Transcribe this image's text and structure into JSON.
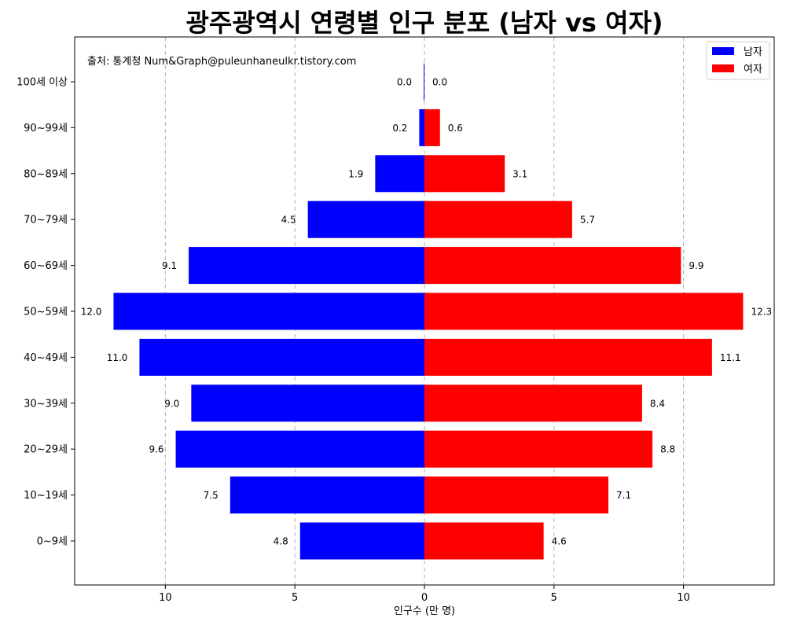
{
  "chart_data": {
    "type": "bar",
    "orientation": "horizontal",
    "title": "광주광역시 연령별 인구 분포 (남자 vs 여자)",
    "xlabel": "인구수 (만 명)",
    "source_note": "출처: 통계청 Num&Graph@puleunhaneulkr.tistory.com",
    "categories": [
      "100세 이상",
      "90~99세",
      "80~89세",
      "70~79세",
      "60~69세",
      "50~59세",
      "40~49세",
      "30~39세",
      "20~29세",
      "10~19세",
      "0~9세"
    ],
    "series": [
      {
        "name": "남자",
        "color": "#0000ff",
        "values": [
          0.0,
          0.2,
          1.9,
          4.5,
          9.1,
          12.0,
          11.0,
          9.0,
          9.6,
          7.5,
          4.8
        ],
        "labels": [
          "0.0",
          "0.2",
          "1.9",
          "4.5",
          "9.1",
          "12.0",
          "11.0",
          "9.0",
          "9.6",
          "7.5",
          "4.8"
        ]
      },
      {
        "name": "여자",
        "color": "#ff0000",
        "values": [
          0.0,
          0.6,
          3.1,
          5.7,
          9.9,
          12.3,
          11.1,
          8.4,
          8.8,
          7.1,
          4.6
        ],
        "labels": [
          "0.0",
          "0.6",
          "3.1",
          "5.7",
          "9.9",
          "12.3",
          "11.1",
          "8.4",
          "8.8",
          "7.1",
          "4.6"
        ]
      }
    ],
    "xlim": [
      -13.5,
      13.5
    ],
    "xticks": [
      -10,
      -5,
      0,
      5,
      10
    ],
    "xtick_labels": [
      "10",
      "5",
      "0",
      "5",
      "10"
    ],
    "grid": "x-dashed",
    "legend": "top-right"
  }
}
